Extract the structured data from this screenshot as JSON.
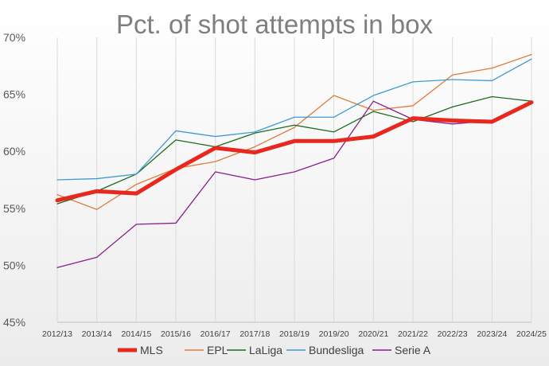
{
  "chart_data": {
    "type": "line",
    "title": "Pct. of shot attempts in box",
    "xlabel": "",
    "ylabel": "",
    "ylim": [
      45,
      70
    ],
    "y_ticks": [
      45,
      50,
      55,
      60,
      65,
      70
    ],
    "y_tick_suffix": "%",
    "grid": "vertical",
    "legend_position": "bottom",
    "categories": [
      "2012/13",
      "2013/14",
      "2014/15",
      "2015/16",
      "2016/17",
      "2017/18",
      "2018/19",
      "2019/20",
      "2020/21",
      "2021/22",
      "2022/23",
      "2023/24",
      "2024/25"
    ],
    "series": [
      {
        "name": "MLS",
        "color": "#e8281e",
        "width": 5,
        "values": [
          55.7,
          56.5,
          56.3,
          58.4,
          60.3,
          59.9,
          60.9,
          60.9,
          61.3,
          62.9,
          62.7,
          62.6,
          64.3
        ]
      },
      {
        "name": "EPL",
        "color": "#e07b3a",
        "width": 1.3,
        "values": [
          56.2,
          54.9,
          57.1,
          58.5,
          59.1,
          60.4,
          62.1,
          64.9,
          63.6,
          64.0,
          66.7,
          67.3,
          68.5
        ]
      },
      {
        "name": "LaLiga",
        "color": "#1f6b1f",
        "width": 1.3,
        "values": [
          55.4,
          56.5,
          58.0,
          61.0,
          60.4,
          61.6,
          62.3,
          61.7,
          63.5,
          62.6,
          63.9,
          64.8,
          64.4
        ]
      },
      {
        "name": "Bundesliga",
        "color": "#3e9ad2",
        "width": 1.3,
        "values": [
          57.5,
          57.6,
          58.0,
          61.8,
          61.3,
          61.7,
          63.0,
          63.0,
          64.9,
          66.1,
          66.3,
          66.2,
          68.1
        ]
      },
      {
        "name": "Serie A",
        "color": "#8a1d8a",
        "width": 1.3,
        "values": [
          49.8,
          50.7,
          53.6,
          53.7,
          58.2,
          57.5,
          58.2,
          59.4,
          64.4,
          62.8,
          62.4,
          62.7,
          64.2
        ]
      }
    ]
  }
}
